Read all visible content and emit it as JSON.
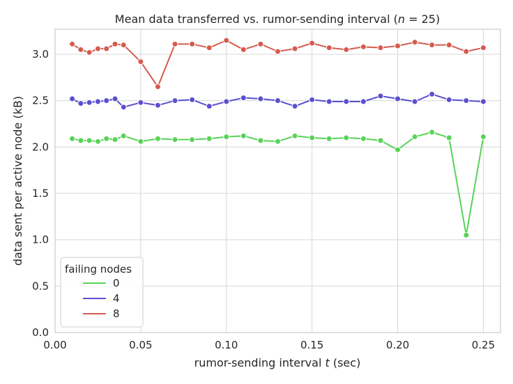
{
  "chart_data": {
    "type": "line",
    "title": "Mean data transferred vs. rumor-sending interval (",
    "title_n_label": "n",
    "title_n_value": " = 25)",
    "xlabel": "rumor-sending interval ",
    "xlabel_var": "t",
    "xlabel_unit": " (sec)",
    "ylabel": "data sent per active node (kB)",
    "xlim": [
      0.0,
      0.26
    ],
    "ylim": [
      0.0,
      3.27
    ],
    "xticks": [
      0.0,
      0.05,
      0.1,
      0.15,
      0.2,
      0.25
    ],
    "xtick_labels": [
      "0.00",
      "0.05",
      "0.10",
      "0.15",
      "0.20",
      "0.25"
    ],
    "yticks": [
      0.0,
      0.5,
      1.0,
      1.5,
      2.0,
      2.5,
      3.0
    ],
    "ytick_labels": [
      "0.0",
      "0.5",
      "1.0",
      "1.5",
      "2.0",
      "2.5",
      "3.0"
    ],
    "grid": true,
    "legend": {
      "title": "failing nodes",
      "position": "lower-left"
    },
    "x": [
      0.01,
      0.015,
      0.02,
      0.025,
      0.03,
      0.035,
      0.04,
      0.05,
      0.06,
      0.07,
      0.08,
      0.09,
      0.1,
      0.11,
      0.12,
      0.13,
      0.14,
      0.15,
      0.16,
      0.17,
      0.18,
      0.19,
      0.2,
      0.21,
      0.22,
      0.23,
      0.24,
      0.25
    ],
    "series": [
      {
        "name": "0",
        "color": "#57d357",
        "values": [
          2.09,
          2.07,
          2.07,
          2.06,
          2.09,
          2.08,
          2.12,
          2.06,
          2.09,
          2.08,
          2.08,
          2.09,
          2.11,
          2.12,
          2.07,
          2.06,
          2.12,
          2.1,
          2.09,
          2.1,
          2.09,
          2.07,
          1.97,
          2.11,
          2.16,
          2.1,
          1.05,
          2.11
        ]
      },
      {
        "name": "4",
        "color": "#5b4fcf",
        "values": [
          2.52,
          2.47,
          2.48,
          2.49,
          2.5,
          2.52,
          2.43,
          2.48,
          2.45,
          2.5,
          2.51,
          2.44,
          2.49,
          2.53,
          2.52,
          2.5,
          2.44,
          2.51,
          2.49,
          2.49,
          2.49,
          2.55,
          2.52,
          2.49,
          2.57,
          2.51,
          2.5,
          2.49
        ]
      },
      {
        "name": "8",
        "color": "#d65a4e",
        "values": [
          3.11,
          3.05,
          3.02,
          3.06,
          3.06,
          3.11,
          3.1,
          2.92,
          2.65,
          3.11,
          3.11,
          3.07,
          3.15,
          3.05,
          3.11,
          3.03,
          3.06,
          3.12,
          3.07,
          3.05,
          3.08,
          3.07,
          3.09,
          3.13,
          3.1,
          3.1,
          3.03,
          3.07
        ]
      }
    ]
  }
}
